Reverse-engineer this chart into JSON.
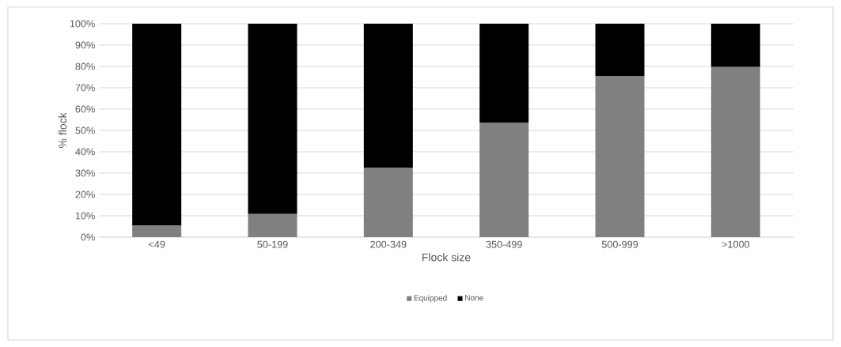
{
  "chart_data": {
    "type": "bar",
    "stacked": true,
    "xlabel": "Flock size",
    "ylabel": "% flock",
    "categories": [
      "<49",
      "50-199",
      "200-349",
      "350-499",
      "500-999",
      ">1000"
    ],
    "series": [
      {
        "name": "Equipped",
        "color": "#808080",
        "values": [
          5.4,
          10.8,
          32.4,
          53.7,
          75.4,
          79.7
        ]
      },
      {
        "name": "None",
        "color": "#000000",
        "values": [
          94.6,
          89.2,
          67.6,
          46.3,
          24.6,
          20.3
        ]
      }
    ],
    "ylim": [
      0,
      100
    ],
    "yticks": [
      {
        "value": 0,
        "label": "0%"
      },
      {
        "value": 10,
        "label": "10%"
      },
      {
        "value": 20,
        "label": "20%"
      },
      {
        "value": 30,
        "label": "30%"
      },
      {
        "value": 40,
        "label": "40%"
      },
      {
        "value": 50,
        "label": "50%"
      },
      {
        "value": 60,
        "label": "60%"
      },
      {
        "value": 70,
        "label": "70%"
      },
      {
        "value": 80,
        "label": "80%"
      },
      {
        "value": 90,
        "label": "90%"
      },
      {
        "value": 100,
        "label": "100%"
      }
    ],
    "grid": "y",
    "legend": "bottom"
  }
}
